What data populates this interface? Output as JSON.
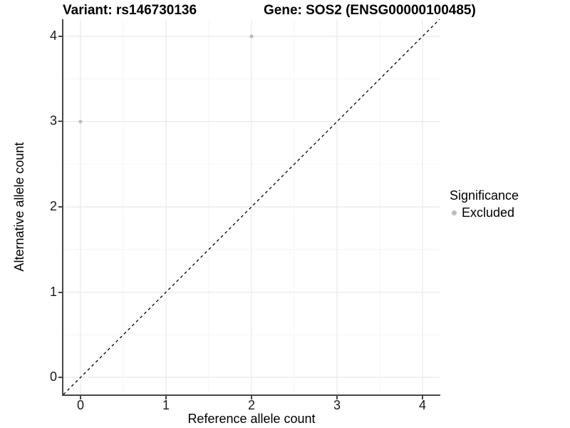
{
  "header": {
    "variant_title": "Variant: rs146730136",
    "gene_title": "Gene: SOS2 (ENSG00000100485)"
  },
  "chart_data": {
    "type": "scatter",
    "title_left": "Variant: rs146730136",
    "title_right": "Gene: SOS2 (ENSG00000100485)",
    "xlabel": "Reference allele count",
    "ylabel": "Alternative allele count",
    "xlim": [
      -0.2,
      4.2
    ],
    "ylim": [
      -0.2,
      4.2
    ],
    "xticks": [
      0,
      1,
      2,
      3,
      4
    ],
    "yticks": [
      0,
      1,
      2,
      3,
      4
    ],
    "grid": "major and minor gridlines on, white panel background",
    "points": [
      {
        "x": 0,
        "y": 3,
        "significance": "Excluded"
      },
      {
        "x": 2,
        "y": 4,
        "significance": "Excluded"
      }
    ],
    "identity_line": {
      "style": "dashed",
      "slope": 1,
      "intercept": 0,
      "color": "#000000"
    },
    "colors": {
      "point": "#bdbdbd",
      "grid_major": "#e8e8e8",
      "grid_minor": "#f5f5f5",
      "axis_line": "#474747",
      "text": "#000000"
    },
    "legend": {
      "title": "Significance",
      "position": "right",
      "entries": [
        {
          "label": "Excluded",
          "color": "#bdbdbd"
        }
      ]
    }
  }
}
